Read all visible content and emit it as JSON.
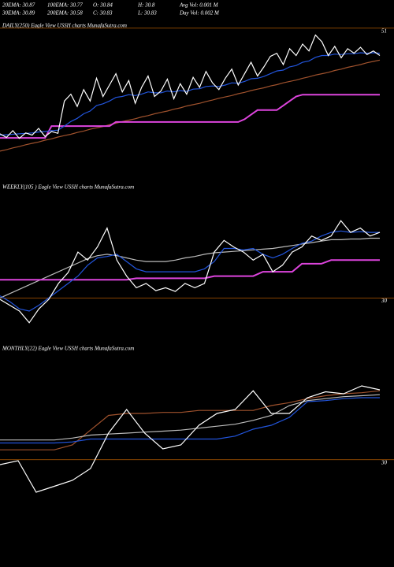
{
  "header": {
    "rows": [
      [
        "20EMA: 30.87",
        "100EMA: 30.77",
        "O: 30.84",
        "H: 30.8",
        "Avg Vol: 0.001 M"
      ],
      [
        "30EMA: 30.89",
        "200EMA: 30.58",
        "C: 30.83",
        "L: 30.83",
        "Day Vol: 0.002 M"
      ]
    ]
  },
  "chart_data": [
    {
      "type": "line",
      "title": "DAILY(250) Eagle   View  USSH charts MunafaSutra.com",
      "ylim": [
        20,
        52
      ],
      "yticks": [
        51
      ],
      "grid": true,
      "grid_color": "#b35900",
      "series": [
        {
          "color": "#a0522d",
          "values": [
            24.0,
            24.3,
            24.7,
            25.0,
            25.4,
            25.7,
            26.0,
            26.4,
            26.7,
            27.1,
            27.4,
            27.7,
            28.1,
            28.4,
            28.8,
            29.1,
            29.4,
            29.8,
            30.1,
            30.5,
            30.8,
            31.1,
            31.5,
            31.8,
            32.2,
            32.5,
            32.8,
            33.2,
            33.5,
            33.9,
            34.2,
            34.5,
            34.9,
            35.2,
            35.6,
            35.9,
            36.2,
            36.6,
            36.9,
            37.3,
            37.6,
            37.9,
            38.3,
            38.6,
            39.0,
            39.3,
            39.6,
            40.0,
            40.3,
            40.7,
            41.0,
            41.3,
            41.7,
            42.0,
            42.4,
            42.7,
            43.0,
            43.4,
            43.7,
            44.0
          ]
        },
        {
          "color": "#dd44dd",
          "values": [
            26.9,
            26.9,
            26.9,
            26.9,
            26.9,
            26.9,
            26.9,
            26.9,
            29.5,
            29.5,
            29.5,
            29.5,
            29.5,
            29.5,
            29.5,
            29.5,
            29.5,
            29.5,
            30.4,
            30.4,
            30.4,
            30.4,
            30.4,
            30.4,
            30.4,
            30.4,
            30.4,
            30.4,
            30.4,
            30.4,
            30.4,
            30.4,
            30.4,
            30.4,
            30.4,
            30.4,
            30.4,
            30.4,
            31.0,
            32.0,
            33.0,
            33.0,
            33.0,
            33.0,
            34.0,
            35.0,
            36.0,
            36.4,
            36.4,
            36.4,
            36.4,
            36.4,
            36.4,
            36.4,
            36.4,
            36.4,
            36.4,
            36.4,
            36.4,
            36.4
          ]
        },
        {
          "color": "#2255dd",
          "values": [
            27.5,
            27.6,
            27.7,
            27.8,
            27.9,
            28.0,
            28.2,
            28.3,
            28.5,
            28.6,
            29.5,
            30.5,
            31.2,
            32.2,
            32.8,
            34.0,
            34.4,
            35.0,
            35.8,
            36.0,
            36.4,
            36.2,
            36.5,
            37.0,
            36.8,
            36.8,
            37.2,
            37.0,
            37.3,
            37.1,
            37.6,
            37.7,
            38.2,
            38.3,
            38.2,
            38.5,
            39.0,
            38.9,
            39.3,
            39.9,
            40.0,
            40.4,
            41.0,
            41.6,
            41.8,
            42.5,
            42.8,
            43.5,
            43.8,
            44.6,
            45.0,
            45.0,
            45.3,
            45.2,
            45.4,
            45.4,
            45.6,
            45.5,
            45.6,
            45.5
          ]
        },
        {
          "color": "#ffffff",
          "values": [
            27.8,
            27.0,
            28.5,
            26.8,
            28.0,
            27.5,
            29.0,
            27.2,
            28.3,
            27.9,
            35.0,
            36.5,
            33.8,
            37.5,
            35.0,
            40.0,
            36.0,
            38.5,
            41.0,
            37.0,
            39.5,
            34.5,
            38.0,
            40.5,
            36.0,
            37.2,
            39.8,
            35.5,
            38.8,
            36.5,
            40.2,
            38.0,
            41.5,
            39.0,
            37.5,
            40.0,
            42.0,
            38.5,
            41.0,
            43.5,
            40.5,
            42.5,
            44.8,
            45.5,
            43.0,
            46.5,
            45.0,
            47.5,
            46.0,
            49.5,
            48.0,
            45.0,
            47.0,
            44.5,
            46.5,
            45.5,
            46.8,
            45.2,
            46.0,
            45.0
          ]
        }
      ]
    },
    {
      "type": "line",
      "title": "WEEKLY(105                ) Eagle  View  USSH charts MunafaSutra.com",
      "ylim": [
        29.55,
        31.55
      ],
      "yticks": [
        30
      ],
      "grid": true,
      "grid_color": "#b35900",
      "series": [
        {
          "color": "#bbbbbb",
          "values": [
            30.0,
            30.06,
            30.12,
            30.18,
            30.24,
            30.3,
            30.36,
            30.42,
            30.48,
            30.54,
            30.58,
            30.6,
            30.58,
            30.55,
            30.52,
            30.5,
            30.5,
            30.5,
            30.52,
            30.55,
            30.57,
            30.6,
            30.62,
            30.63,
            30.64,
            30.65,
            30.66,
            30.67,
            30.68,
            30.7,
            30.72,
            30.74,
            30.76,
            30.78,
            30.8,
            30.8,
            30.81,
            30.81,
            30.82,
            30.82
          ]
        },
        {
          "color": "#dd44dd",
          "values": [
            30.25,
            30.25,
            30.25,
            30.25,
            30.25,
            30.25,
            30.25,
            30.25,
            30.25,
            30.25,
            30.25,
            30.25,
            30.25,
            30.25,
            30.27,
            30.27,
            30.27,
            30.27,
            30.27,
            30.27,
            30.27,
            30.27,
            30.3,
            30.3,
            30.3,
            30.3,
            30.3,
            30.36,
            30.36,
            30.36,
            30.36,
            30.47,
            30.47,
            30.47,
            30.52,
            30.52,
            30.52,
            30.52,
            30.52,
            30.52
          ]
        },
        {
          "color": "#2255dd",
          "values": [
            30.03,
            29.95,
            29.85,
            29.82,
            29.9,
            30.0,
            30.1,
            30.2,
            30.3,
            30.45,
            30.55,
            30.57,
            30.6,
            30.5,
            30.4,
            30.36,
            30.36,
            30.36,
            30.36,
            30.36,
            30.36,
            30.4,
            30.5,
            30.68,
            30.68,
            30.66,
            30.68,
            30.6,
            30.55,
            30.6,
            30.68,
            30.75,
            30.78,
            30.85,
            30.9,
            30.92,
            30.9,
            30.91,
            30.9,
            30.9
          ]
        },
        {
          "color": "#ffffff",
          "values": [
            29.98,
            29.9,
            29.82,
            29.66,
            29.85,
            29.98,
            30.2,
            30.35,
            30.63,
            30.52,
            30.7,
            30.96,
            30.52,
            30.3,
            30.14,
            30.2,
            30.1,
            30.14,
            30.09,
            30.2,
            30.14,
            30.2,
            30.63,
            30.79,
            30.7,
            30.63,
            30.52,
            30.6,
            30.36,
            30.45,
            30.63,
            30.7,
            30.85,
            30.79,
            30.85,
            31.06,
            30.9,
            30.96,
            30.85,
            30.9
          ]
        }
      ]
    },
    {
      "type": "line",
      "title": "MONTHLY(22) Eagle  View  USSH charts MunafaSutra.com",
      "ylim": [
        29.15,
        31.15
      ],
      "yticks": [
        30
      ],
      "grid": true,
      "grid_color": "#b35900",
      "series": [
        {
          "color": "#a0522d",
          "values": [
            30.1,
            30.1,
            30.1,
            30.1,
            30.15,
            30.3,
            30.45,
            30.47,
            30.47,
            30.48,
            30.48,
            30.5,
            30.5,
            30.5,
            30.5,
            30.55,
            30.58,
            30.62,
            30.65,
            30.67,
            30.68,
            30.7
          ]
        },
        {
          "color": "#bbbbbb",
          "values": [
            30.2,
            30.2,
            30.2,
            30.2,
            30.22,
            30.25,
            30.26,
            30.27,
            30.28,
            30.29,
            30.3,
            30.32,
            30.34,
            30.36,
            30.4,
            30.45,
            30.55,
            30.6,
            30.62,
            30.64,
            30.65,
            30.66
          ]
        },
        {
          "color": "#2255dd",
          "values": [
            30.17,
            30.17,
            30.17,
            30.17,
            30.18,
            30.21,
            30.21,
            30.21,
            30.21,
            30.21,
            30.21,
            30.21,
            30.21,
            30.24,
            30.31,
            30.35,
            30.43,
            30.59,
            30.6,
            30.62,
            30.63,
            30.63
          ]
        },
        {
          "color": "#ffffff",
          "values": [
            29.95,
            29.99,
            29.67,
            29.73,
            29.79,
            29.91,
            30.27,
            30.51,
            30.27,
            30.11,
            30.15,
            30.35,
            30.47,
            30.51,
            30.7,
            30.47,
            30.47,
            30.63,
            30.69,
            30.67,
            30.75,
            30.71
          ]
        }
      ]
    }
  ]
}
